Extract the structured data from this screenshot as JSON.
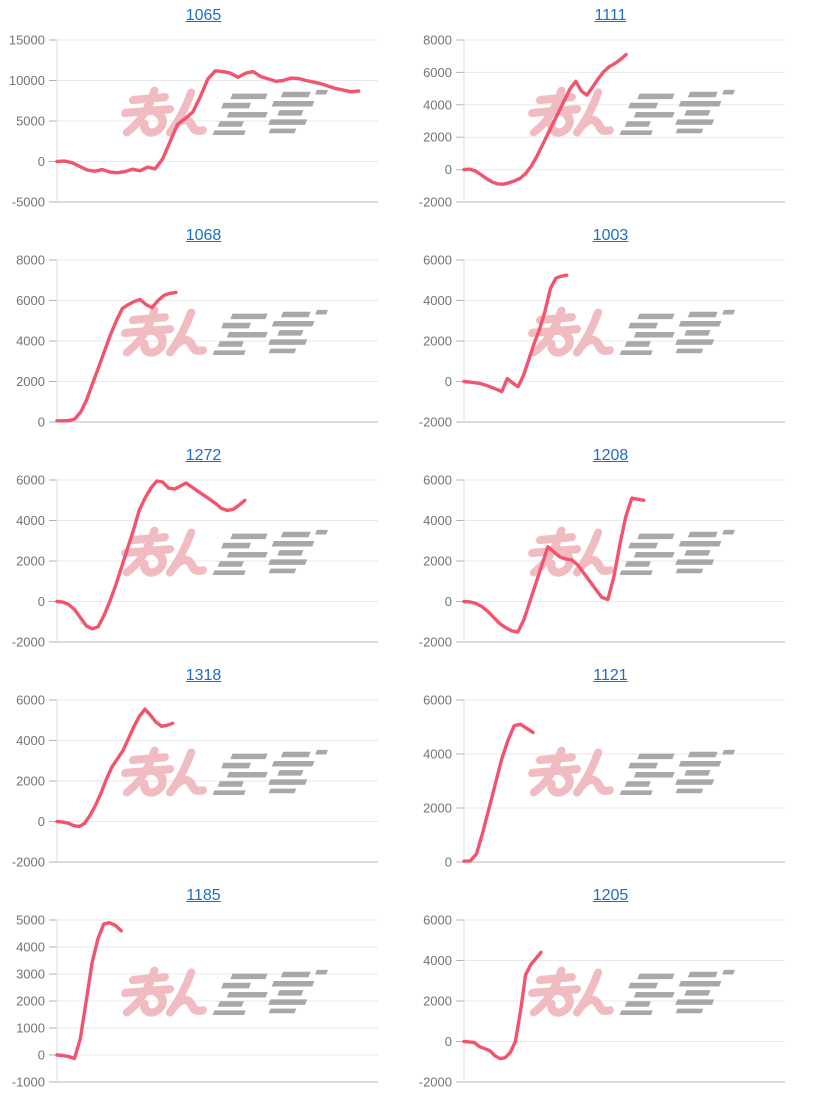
{
  "page": {
    "background": "#ffffff"
  },
  "style": {
    "line_color": "#f2546e",
    "title_link_color": "#1a6ec8",
    "axis_label_color": "#757575",
    "grid_color": "#e9e9e9",
    "axis_line_color": "#b9b9b9",
    "tick_color": "#b3b3b3",
    "plot_border_color": "#dcdcdc"
  },
  "watermark": {
    "icon": "minkabu-logo-watermark",
    "pink_color": "#f1bcc1",
    "gray_color": "#a8a8a8"
  },
  "chart_data": [
    {
      "type": "line",
      "title": "1065",
      "xlabel": "",
      "ylabel": "",
      "ylim": [
        -5000,
        15000
      ],
      "yticks": [
        15000,
        10000,
        5000,
        0,
        -5000
      ],
      "grid": "horizontal",
      "legend": "none",
      "x_span": 0.94,
      "values": [
        0,
        50,
        -150,
        -600,
        -1050,
        -1200,
        -1000,
        -1300,
        -1400,
        -1250,
        -950,
        -1150,
        -700,
        -900,
        300,
        2500,
        4600,
        5300,
        6100,
        8000,
        10200,
        11200,
        11100,
        10900,
        10400,
        10900,
        11100,
        10500,
        10200,
        9900,
        10000,
        10300,
        10250,
        10000,
        9800,
        9600,
        9300,
        9000,
        8800,
        8600,
        8700
      ]
    },
    {
      "type": "line",
      "title": "1111",
      "xlabel": "",
      "ylabel": "",
      "ylim": [
        -2000,
        8000
      ],
      "yticks": [
        8000,
        6000,
        4000,
        2000,
        0,
        -2000
      ],
      "grid": "horizontal",
      "legend": "none",
      "x_span": 0.505,
      "values": [
        0,
        30,
        -80,
        -300,
        -550,
        -750,
        -880,
        -900,
        -820,
        -700,
        -550,
        -250,
        200,
        800,
        1500,
        2200,
        2900,
        3600,
        4300,
        5000,
        5450,
        4850,
        4600,
        5100,
        5600,
        6050,
        6350,
        6550,
        6800,
        7100
      ]
    },
    {
      "type": "line",
      "title": "1068",
      "xlabel": "",
      "ylabel": "",
      "ylim": [
        0,
        8000
      ],
      "yticks": [
        8000,
        6000,
        4000,
        2000,
        0
      ],
      "grid": "horizontal",
      "legend": "none",
      "x_span": 0.37,
      "values": [
        60,
        60,
        70,
        150,
        500,
        1100,
        1900,
        2700,
        3500,
        4300,
        5000,
        5600,
        5800,
        5950,
        6050,
        5800,
        5650,
        6000,
        6250,
        6350,
        6400
      ]
    },
    {
      "type": "line",
      "title": "1003",
      "xlabel": "",
      "ylabel": "",
      "ylim": [
        -2000,
        6000
      ],
      "yticks": [
        6000,
        4000,
        2000,
        0,
        -2000
      ],
      "grid": "horizontal",
      "legend": "none",
      "x_span": 0.32,
      "values": [
        0,
        -30,
        -60,
        -100,
        -180,
        -280,
        -380,
        -500,
        150,
        -80,
        -250,
        300,
        1100,
        1900,
        2600,
        3500,
        4600,
        5100,
        5200,
        5250
      ]
    },
    {
      "type": "line",
      "title": "1272",
      "xlabel": "",
      "ylabel": "",
      "ylim": [
        -2000,
        6000
      ],
      "yticks": [
        6000,
        4000,
        2000,
        0,
        -2000
      ],
      "grid": "horizontal",
      "legend": "none",
      "x_span": 0.585,
      "values": [
        0,
        -30,
        -150,
        -400,
        -800,
        -1200,
        -1350,
        -1250,
        -700,
        0,
        800,
        1700,
        2600,
        3500,
        4500,
        5100,
        5600,
        5950,
        5900,
        5600,
        5550,
        5700,
        5850,
        5650,
        5450,
        5250,
        5050,
        4850,
        4600,
        4500,
        4550,
        4750,
        5000
      ]
    },
    {
      "type": "line",
      "title": "1208",
      "xlabel": "",
      "ylabel": "",
      "ylim": [
        -2000,
        6000
      ],
      "yticks": [
        6000,
        4000,
        2000,
        0,
        -2000
      ],
      "grid": "horizontal",
      "legend": "none",
      "x_span": 0.56,
      "values": [
        0,
        -20,
        -100,
        -250,
        -500,
        -800,
        -1100,
        -1300,
        -1450,
        -1500,
        -900,
        0,
        900,
        1800,
        2700,
        2450,
        2200,
        2100,
        2050,
        1800,
        1400,
        1000,
        600,
        200,
        100,
        1200,
        2800,
        4200,
        5100,
        5050,
        5000
      ]
    },
    {
      "type": "line",
      "title": "1318",
      "xlabel": "",
      "ylabel": "",
      "ylim": [
        -2000,
        6000
      ],
      "yticks": [
        6000,
        4000,
        2000,
        0,
        -2000
      ],
      "grid": "horizontal",
      "legend": "none",
      "x_span": 0.36,
      "values": [
        0,
        -30,
        -80,
        -200,
        -250,
        -100,
        300,
        800,
        1400,
        2100,
        2700,
        3100,
        3500,
        4100,
        4700,
        5200,
        5550,
        5250,
        4900,
        4700,
        4750,
        4850
      ]
    },
    {
      "type": "line",
      "title": "1121",
      "xlabel": "",
      "ylabel": "",
      "ylim": [
        0,
        6000
      ],
      "yticks": [
        6000,
        4000,
        2000,
        0
      ],
      "grid": "horizontal",
      "legend": "none",
      "x_span": 0.215,
      "values": [
        30,
        40,
        300,
        1100,
        2000,
        2900,
        3800,
        4500,
        5050,
        5100,
        4950,
        4800
      ]
    },
    {
      "type": "line",
      "title": "1185",
      "xlabel": "",
      "ylabel": "",
      "ylim": [
        -1000,
        5000
      ],
      "yticks": [
        5000,
        4000,
        3000,
        2000,
        1000,
        0,
        -1000
      ],
      "grid": "horizontal",
      "legend": "none",
      "x_span": 0.2,
      "values": [
        0,
        -20,
        -60,
        -130,
        600,
        2000,
        3400,
        4300,
        4850,
        4900,
        4800,
        4600
      ]
    },
    {
      "type": "line",
      "title": "1205",
      "xlabel": "",
      "ylabel": "",
      "ylim": [
        -2000,
        6000
      ],
      "yticks": [
        6000,
        4000,
        2000,
        0,
        -2000
      ],
      "grid": "horizontal",
      "legend": "none",
      "x_span": 0.24,
      "values": [
        0,
        -20,
        -50,
        -250,
        -350,
        -450,
        -700,
        -850,
        -800,
        -550,
        0,
        1500,
        3300,
        3800,
        4100,
        4400
      ]
    }
  ]
}
